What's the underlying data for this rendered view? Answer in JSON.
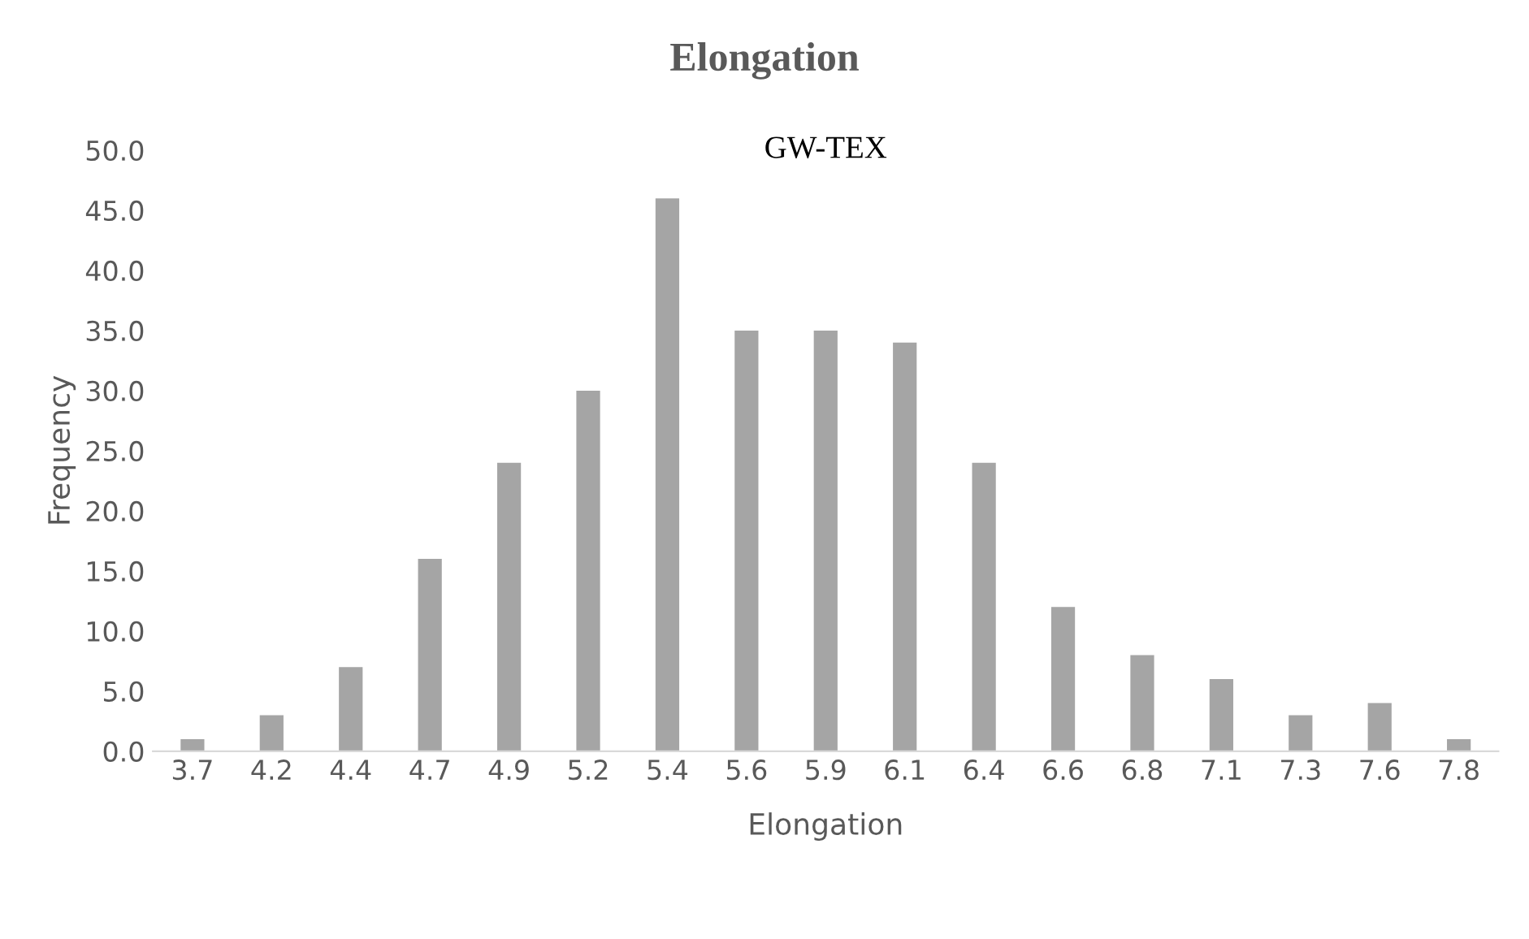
{
  "chart_data": {
    "type": "bar",
    "title": "Elongation",
    "subtitle": "GW-TEX",
    "xlabel": "Elongation",
    "ylabel": "Frequency",
    "categories": [
      "3.7",
      "4.2",
      "4.4",
      "4.7",
      "4.9",
      "5.2",
      "5.4",
      "5.6",
      "5.9",
      "6.1",
      "6.4",
      "6.6",
      "6.8",
      "7.1",
      "7.3",
      "7.6",
      "7.8"
    ],
    "values": [
      1,
      3,
      7,
      16,
      24,
      30,
      46,
      35,
      35,
      34,
      24,
      12,
      8,
      6,
      3,
      4,
      1
    ],
    "color": "#a5a5a5",
    "ylim": [
      0,
      50
    ],
    "yticks": [
      {
        "value": 0,
        "label": "0.0"
      },
      {
        "value": 5,
        "label": "5.0"
      },
      {
        "value": 10,
        "label": "10.0"
      },
      {
        "value": 15,
        "label": "15.0"
      },
      {
        "value": 20,
        "label": "20.0"
      },
      {
        "value": 25,
        "label": "25.0"
      },
      {
        "value": 30,
        "label": "30.0"
      },
      {
        "value": 35,
        "label": "35.0"
      },
      {
        "value": 40,
        "label": "40.0"
      },
      {
        "value": 45,
        "label": "45.0"
      },
      {
        "value": 50,
        "label": "50.0"
      }
    ],
    "grid": false,
    "legend": false
  }
}
